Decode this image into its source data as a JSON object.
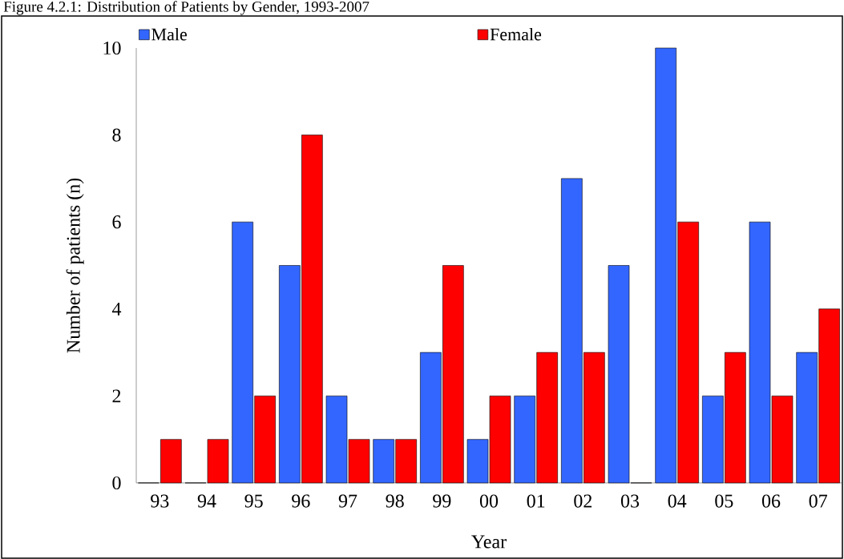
{
  "chart_data": {
    "type": "bar",
    "title": "Figure 4.2.1: Distribution of Patients by Gender, 1993-2007",
    "xlabel": "Year",
    "ylabel": "Number of patients (n)",
    "categories": [
      "93",
      "94",
      "95",
      "96",
      "97",
      "98",
      "99",
      "00",
      "01",
      "02",
      "03",
      "04",
      "05",
      "06",
      "07"
    ],
    "series": [
      {
        "name": "Male",
        "color": "#3366ff",
        "values": [
          0,
          0,
          6,
          5,
          2,
          1,
          3,
          1,
          2,
          7,
          5,
          10,
          2,
          6,
          3
        ]
      },
      {
        "name": "Female",
        "color": "#ff0000",
        "values": [
          1,
          1,
          2,
          8,
          1,
          1,
          5,
          2,
          3,
          3,
          0,
          6,
          3,
          2,
          4
        ]
      }
    ],
    "ylim": [
      0,
      10
    ],
    "yticks": [
      0,
      2,
      4,
      6,
      8,
      10
    ],
    "legend": "top",
    "grid": false
  }
}
